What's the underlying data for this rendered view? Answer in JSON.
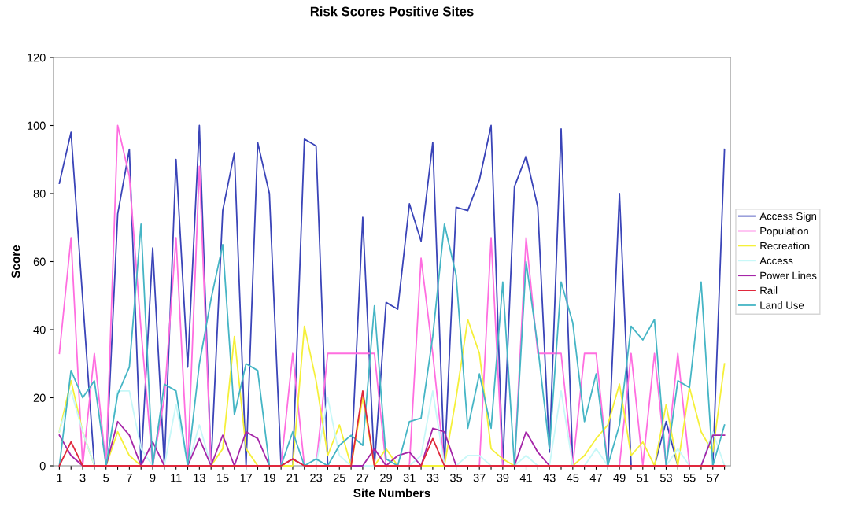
{
  "chart_data": {
    "type": "line",
    "title": "Risk Scores Positive Sites",
    "xlabel": "Site Numbers",
    "ylabel": "Score",
    "categories": [
      "1",
      null,
      "3",
      null,
      "5",
      null,
      "7",
      null,
      "9",
      null,
      "11",
      null,
      "13",
      null,
      "15",
      null,
      "17",
      null,
      "19",
      null,
      "21",
      null,
      "23",
      null,
      "25",
      null,
      "27",
      null,
      "29",
      null,
      "31",
      null,
      "33",
      null,
      "35",
      null,
      "37",
      null,
      "39",
      null,
      "41",
      null,
      "43",
      null,
      "45",
      null,
      "47",
      null,
      "49",
      null,
      "51",
      null,
      "53",
      null,
      "55",
      null,
      "57",
      null
    ],
    "ylim": [
      0,
      120
    ],
    "yticks": [
      0,
      20,
      40,
      60,
      80,
      100,
      120
    ],
    "grid": false,
    "legend": "right",
    "marker": "none",
    "line_style": "solid",
    "series": [
      {
        "name": "Access Sign",
        "color": "#3a44b8",
        "values": [
          83,
          98,
          49,
          0,
          0,
          74,
          93,
          0,
          64,
          0,
          90,
          29,
          100,
          0,
          75,
          92,
          0,
          95,
          80,
          0,
          0,
          96,
          94,
          0,
          0,
          0,
          73,
          0,
          48,
          46,
          77,
          66,
          95,
          0,
          76,
          75,
          84,
          100,
          0,
          82,
          91,
          76,
          4,
          99,
          0,
          0,
          0,
          0,
          80,
          0,
          0,
          0,
          13,
          0,
          0,
          0,
          0,
          93
        ]
      },
      {
        "name": "Population",
        "color": "#ff6ee0",
        "values": [
          33,
          67,
          0,
          33,
          0,
          100,
          85,
          40,
          0,
          20,
          67,
          0,
          88,
          0,
          0,
          0,
          0,
          0,
          0,
          0,
          33,
          0,
          0,
          33,
          33,
          33,
          33,
          33,
          0,
          0,
          0,
          61,
          33,
          0,
          0,
          0,
          0,
          67,
          0,
          0,
          67,
          33,
          33,
          33,
          0,
          33,
          33,
          0,
          0,
          33,
          0,
          33,
          0,
          33,
          0,
          0,
          null,
          null
        ]
      },
      {
        "name": "Recreation",
        "color": "#f5f03a",
        "values": [
          10,
          25,
          10,
          0,
          0,
          10,
          3,
          0,
          0,
          0,
          0,
          0,
          0,
          0,
          5,
          38,
          5,
          0,
          0,
          0,
          0,
          41,
          25,
          3,
          12,
          0,
          20,
          0,
          5,
          0,
          0,
          0,
          0,
          0,
          20,
          43,
          33,
          5,
          2,
          0,
          0,
          0,
          0,
          0,
          0,
          3,
          8,
          12,
          24,
          3,
          7,
          0,
          18,
          0,
          23,
          10,
          4,
          30
        ]
      },
      {
        "name": "Access",
        "color": "#c8f8f8",
        "values": [
          10,
          22,
          10,
          0,
          0,
          22,
          22,
          5,
          0,
          0,
          18,
          0,
          12,
          0,
          0,
          0,
          0,
          0,
          0,
          0,
          2,
          0,
          0,
          20,
          3,
          0,
          0,
          0,
          0,
          0,
          0,
          3,
          22,
          0,
          0,
          3,
          3,
          0,
          0,
          0,
          3,
          0,
          0,
          22,
          0,
          0,
          5,
          0,
          0,
          0,
          0,
          0,
          0,
          5,
          0,
          0,
          10,
          0
        ]
      },
      {
        "name": "Power Lines",
        "color": "#a526a8",
        "values": [
          9,
          3,
          0,
          0,
          0,
          13,
          9,
          0,
          7,
          0,
          0,
          0,
          8,
          0,
          9,
          0,
          10,
          8,
          0,
          0,
          2,
          0,
          0,
          0,
          0,
          0,
          0,
          5,
          0,
          3,
          4,
          0,
          11,
          10,
          0,
          0,
          0,
          0,
          0,
          0,
          10,
          4,
          0,
          0,
          0,
          0,
          0,
          0,
          0,
          0,
          0,
          0,
          0,
          0,
          0,
          0,
          9,
          9
        ]
      },
      {
        "name": "Rail",
        "color": "#e0283c",
        "values": [
          0,
          7,
          0,
          0,
          0,
          0,
          0,
          0,
          0,
          0,
          0,
          0,
          0,
          0,
          0,
          0,
          0,
          0,
          0,
          0,
          2,
          0,
          0,
          0,
          0,
          0,
          22,
          0,
          0,
          0,
          0,
          0,
          8,
          0,
          0,
          0,
          0,
          0,
          0,
          0,
          0,
          0,
          0,
          0,
          0,
          0,
          0,
          0,
          0,
          0,
          0,
          0,
          0,
          0,
          0,
          0,
          0,
          0
        ]
      },
      {
        "name": "Land Use",
        "color": "#45b5c5",
        "values": [
          0,
          28,
          20,
          25,
          0,
          21,
          29,
          71,
          0,
          24,
          22,
          0,
          30,
          49,
          65,
          15,
          30,
          28,
          0,
          0,
          10,
          0,
          2,
          0,
          6,
          9,
          6,
          47,
          2,
          0,
          13,
          14,
          38,
          71,
          56,
          11,
          27,
          11,
          54,
          0,
          60,
          35,
          5,
          54,
          42,
          13,
          27,
          0,
          12,
          41,
          37,
          43,
          0,
          25,
          23,
          54,
          0,
          12
        ]
      }
    ]
  }
}
